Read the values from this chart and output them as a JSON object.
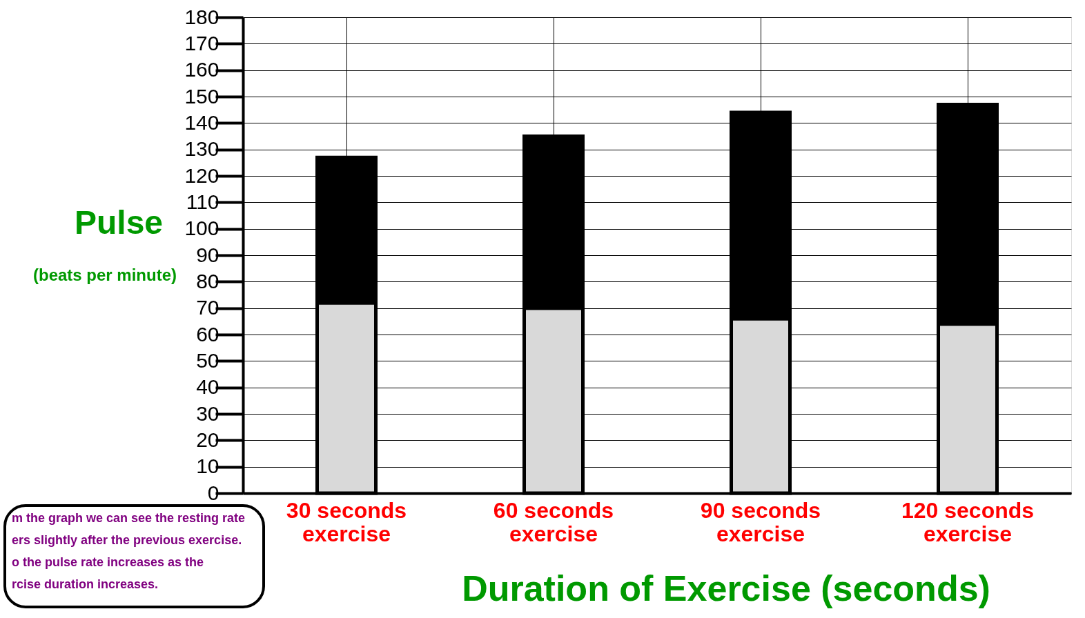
{
  "chart_data": {
    "type": "bar",
    "stacked": true,
    "ylabel": "Pulse",
    "xlabel": "Duration of Exercise (seconds)",
    "categories": [
      "30 seconds exercise",
      "60 seconds exercise",
      "90 seconds exercise",
      "120 seconds exercise"
    ],
    "series": [
      {
        "color": "#d9d9d9",
        "values": [
          72,
          70,
          66,
          64
        ]
      },
      {
        "color": "#000000",
        "values": [
          55,
          65,
          78,
          83
        ]
      }
    ],
    "ylim": [
      0,
      180
    ],
    "yticks": [
      0,
      10,
      20,
      30,
      40,
      50,
      60,
      70,
      80,
      90,
      100,
      110,
      120,
      130,
      140,
      150,
      160,
      170,
      180
    ],
    "grid": true,
    "legend": false,
    "annotations": [
      "(beats per minute)",
      "m the graph we can see the resting rate\ners slightly after the previous exercise.\no the pulse rate increases as the\nrcise duration increases."
    ]
  }
}
